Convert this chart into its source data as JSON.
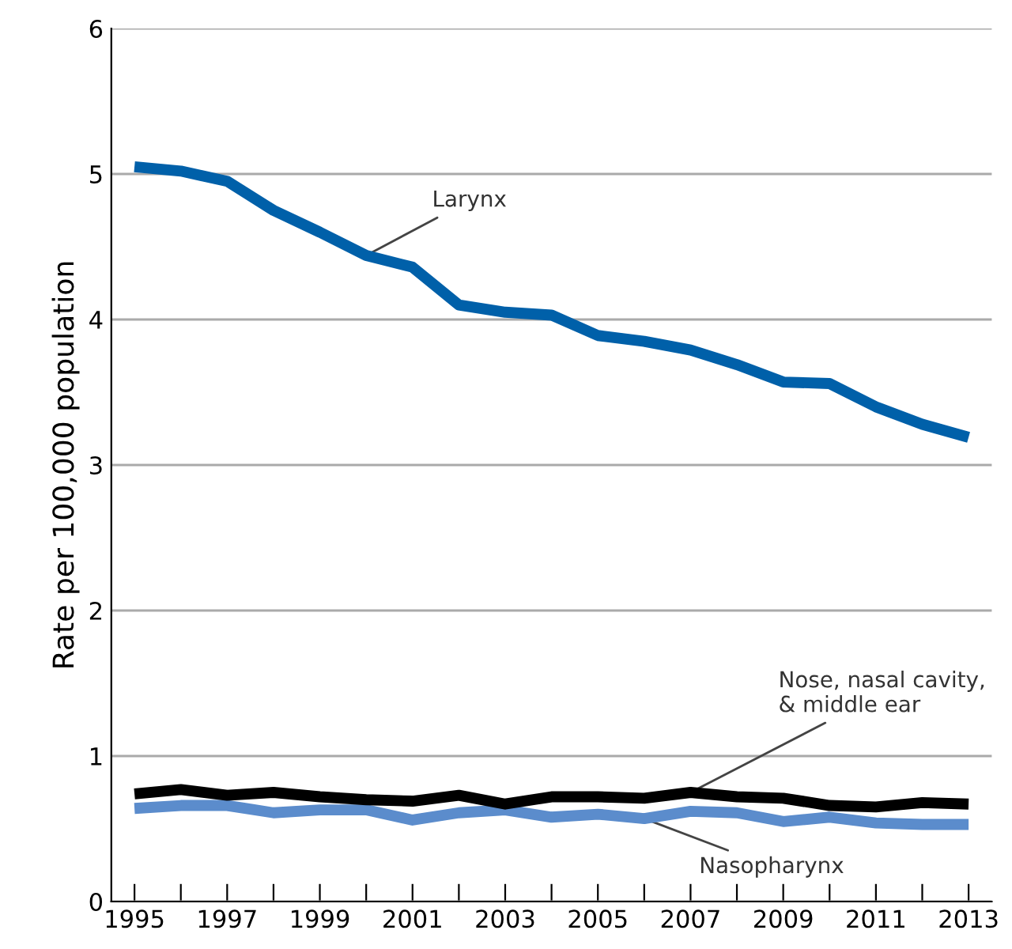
{
  "chart_data": {
    "type": "line",
    "ylabel": "Rate per 100,000 population",
    "x": [
      1995,
      1996,
      1997,
      1998,
      1999,
      2000,
      2001,
      2002,
      2003,
      2004,
      2005,
      2006,
      2007,
      2008,
      2009,
      2010,
      2011,
      2012,
      2013
    ],
    "series": [
      {
        "name": "Larynx",
        "color": "#0060a9",
        "values": [
          5.05,
          5.02,
          4.95,
          4.75,
          4.6,
          4.44,
          4.36,
          4.1,
          4.05,
          4.03,
          3.89,
          3.85,
          3.79,
          3.69,
          3.57,
          3.56,
          3.4,
          3.28,
          3.19
        ]
      },
      {
        "name": "Nose, nasal cavity,\n& middle ear",
        "color": "#000000",
        "values": [
          0.74,
          0.77,
          0.73,
          0.75,
          0.72,
          0.7,
          0.69,
          0.73,
          0.67,
          0.72,
          0.72,
          0.71,
          0.75,
          0.72,
          0.71,
          0.66,
          0.65,
          0.68,
          0.67
        ]
      },
      {
        "name": "Nasopharynx",
        "color": "#5b8ccc",
        "values": [
          0.64,
          0.66,
          0.66,
          0.61,
          0.63,
          0.63,
          0.56,
          0.61,
          0.63,
          0.58,
          0.6,
          0.57,
          0.62,
          0.61,
          0.55,
          0.58,
          0.54,
          0.53,
          0.53
        ]
      }
    ],
    "xlim": [
      1994.5,
      2013.5
    ],
    "xticks": [
      1995,
      {
        "value": 1996,
        "label": null
      },
      1997,
      {
        "value": 1998,
        "label": null
      },
      1999,
      {
        "value": 2000,
        "label": null
      },
      2001,
      {
        "value": 2002,
        "label": null
      },
      2003,
      {
        "value": 2004,
        "label": null
      },
      2005,
      {
        "value": 2006,
        "label": null
      },
      2007,
      {
        "value": 2008,
        "label": null
      },
      2009,
      {
        "value": 2010,
        "label": null
      },
      2011,
      {
        "value": 2012,
        "label": null
      },
      2013
    ],
    "ylim": [
      0,
      6
    ],
    "yticks": [
      0,
      1,
      2,
      3,
      4,
      5,
      6
    ],
    "grid": "y",
    "legend": false,
    "marker": "none",
    "line_style": "solid"
  }
}
